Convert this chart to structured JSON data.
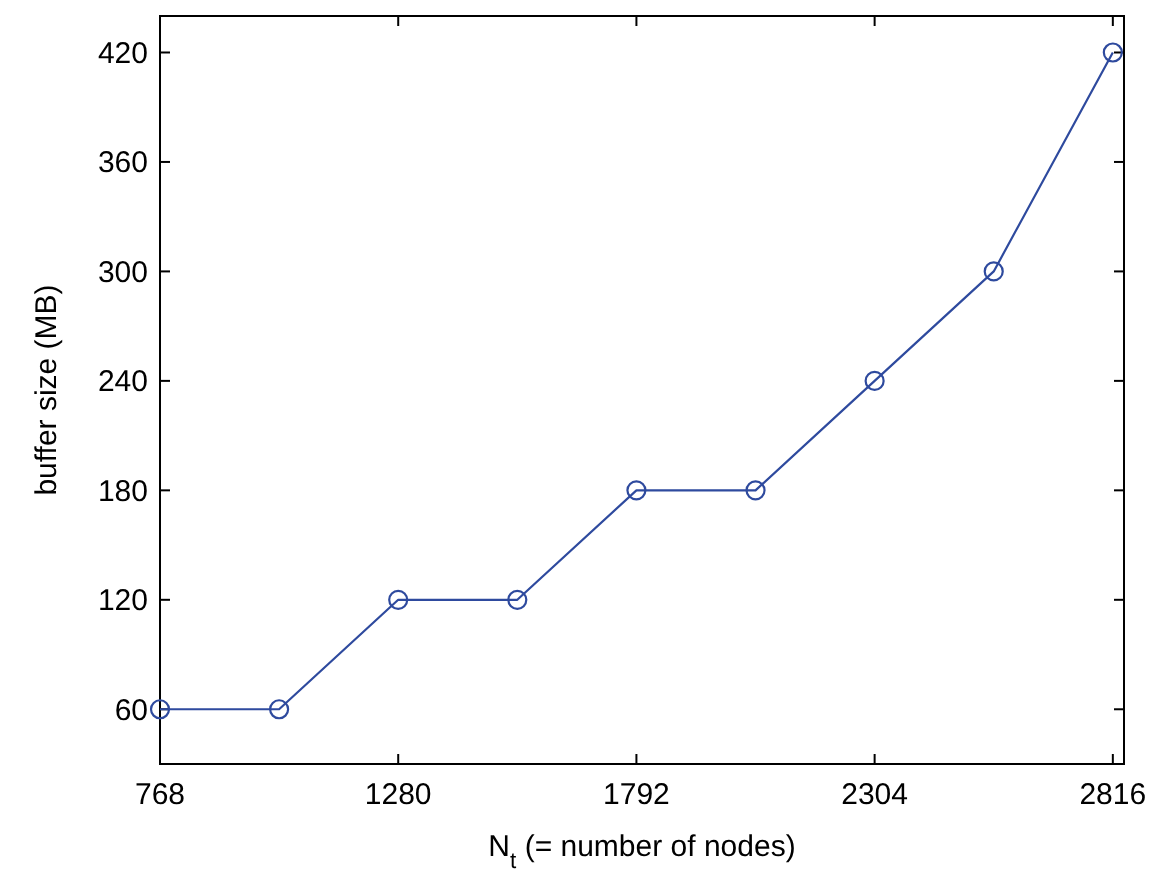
{
  "chart_data": {
    "type": "line",
    "xlabel": "N$_{t}$ (= number of nodes)",
    "ylabel": "buffer size (MB)",
    "x": [
      768,
      1024,
      1280,
      1536,
      1792,
      2048,
      2304,
      2560,
      2816
    ],
    "series": [
      {
        "color": "#2e4a9e",
        "values": [
          60,
          60,
          120,
          120,
          180,
          180,
          240,
          300,
          420
        ]
      }
    ],
    "xlim": [
      768,
      2840
    ],
    "ylim": [
      30,
      440
    ],
    "xticks": [
      768,
      1280,
      1792,
      2304,
      2816
    ],
    "yticks": [
      60,
      120,
      180,
      240,
      300,
      360,
      420
    ],
    "marker": "circle",
    "line_style": "solid",
    "grid": false
  }
}
